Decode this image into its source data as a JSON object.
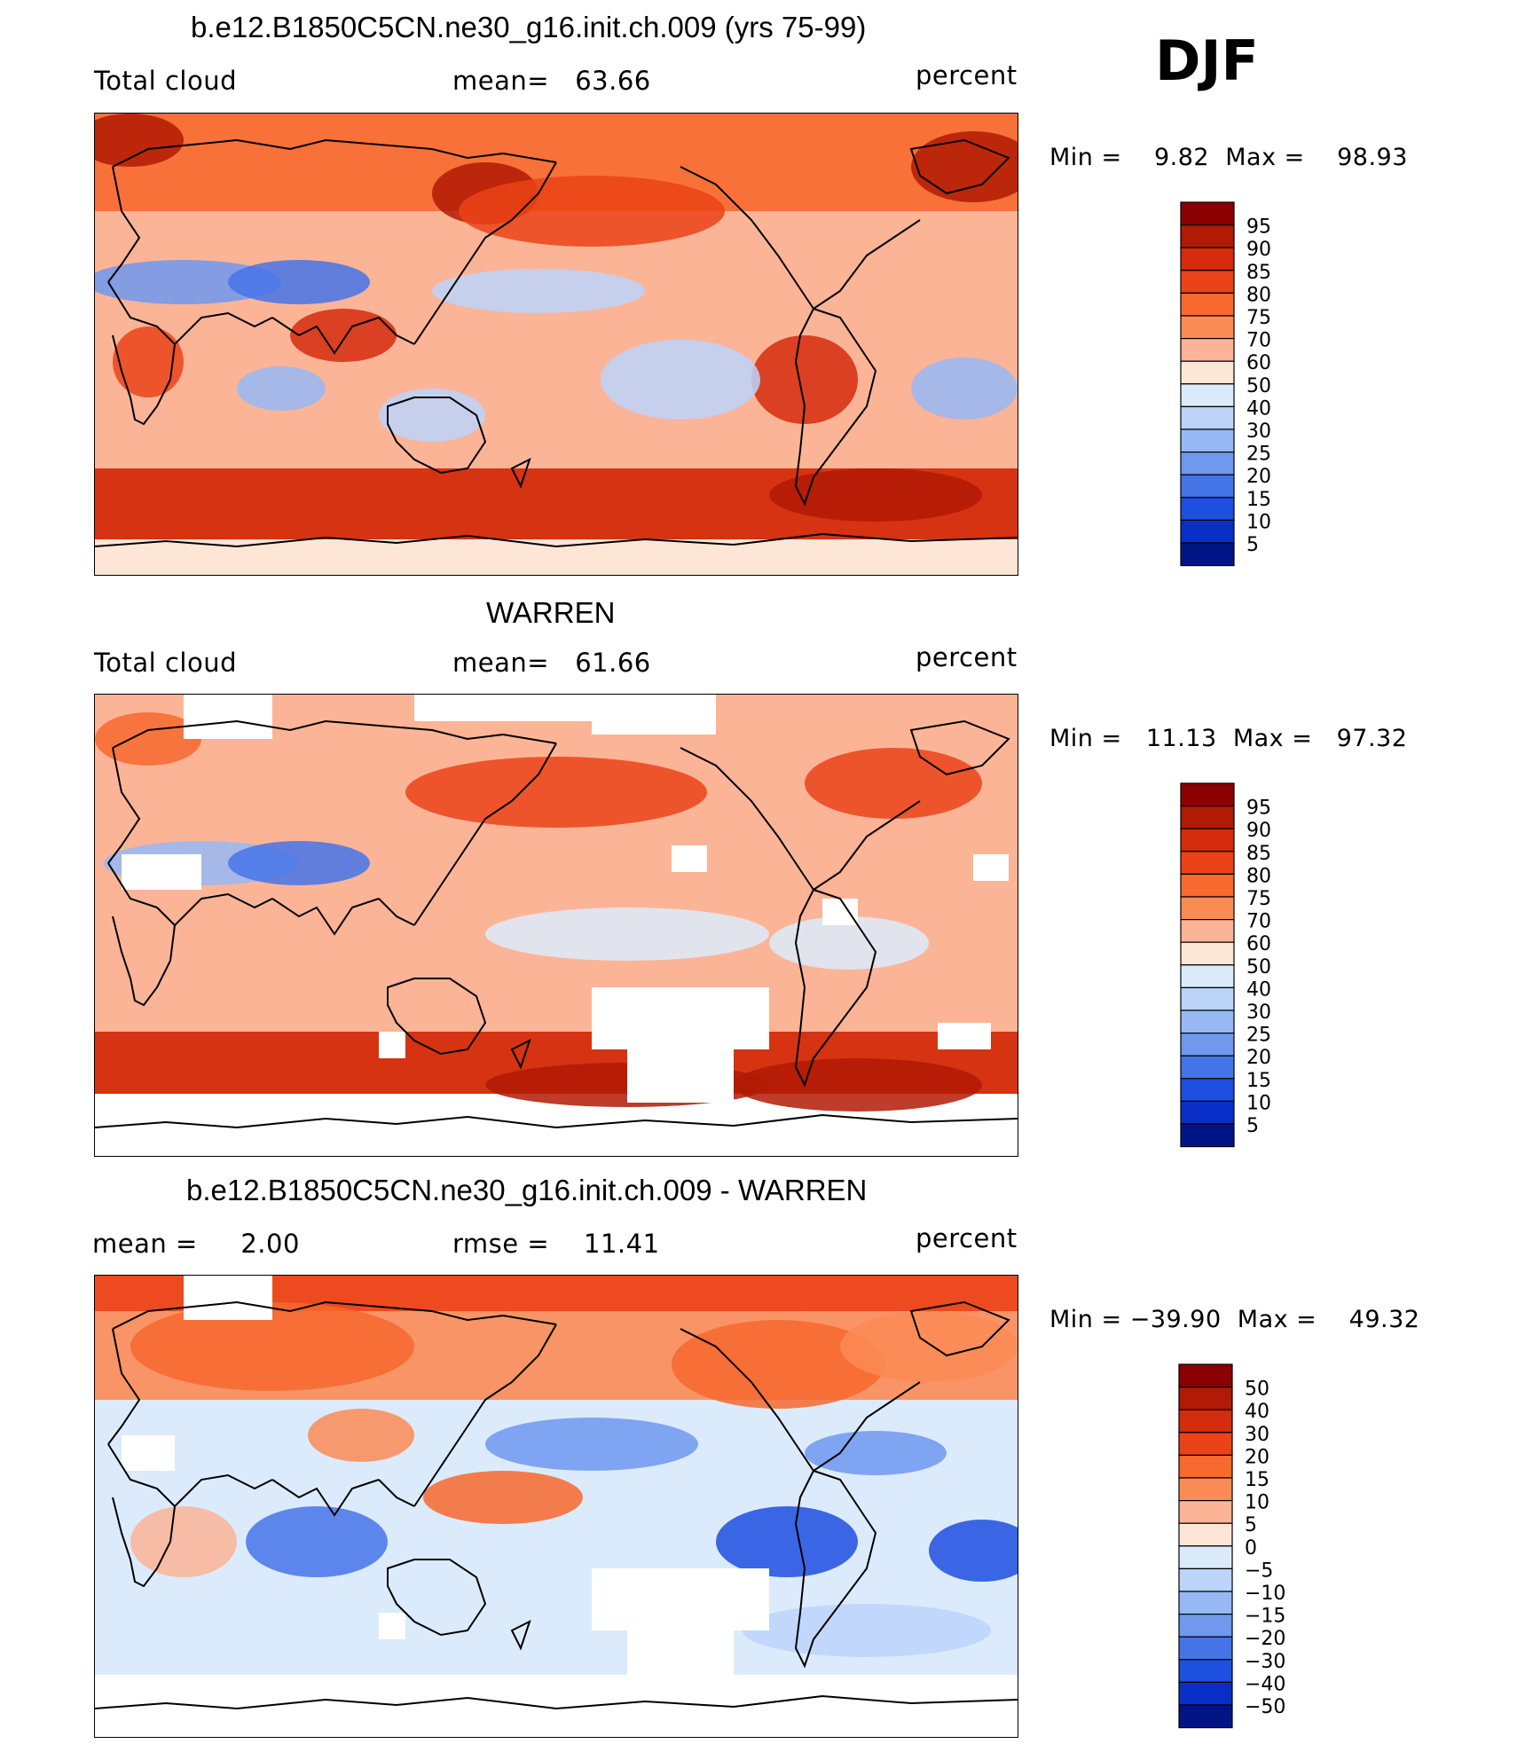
{
  "season": "DJF",
  "panels": [
    {
      "id": "model",
      "title": "b.e12.B1850C5CN.ne30_g16.init.ch.009 (yrs 75-99)",
      "left_label": "Total cloud",
      "center_label": "mean=   63.66",
      "units": "percent",
      "minmax": "Min =    9.82  Max =    98.93"
    },
    {
      "id": "obs",
      "title": "WARREN",
      "left_label": "Total cloud",
      "center_label": "mean=   61.66",
      "units": "percent",
      "minmax": "Min =   11.13  Max =   97.32"
    },
    {
      "id": "diff",
      "title": "b.e12.B1850C5CN.ne30_g16.init.ch.009 - WARREN",
      "left_label": "mean =     2.00",
      "center_label": "rmse =    11.41",
      "units": "percent",
      "minmax": "Min = −39.90  Max =    49.32"
    }
  ],
  "chart_data": [
    {
      "type": "heatmap",
      "title": "b.e12.B1850C5CN.ne30_g16.init.ch.009 (yrs 75-99)",
      "variable": "Total cloud",
      "units": "percent",
      "mean": 63.66,
      "min": 9.82,
      "max": 98.93,
      "colorbar_labels": [
        "95",
        "90",
        "85",
        "80",
        "75",
        "70",
        "60",
        "50",
        "40",
        "30",
        "25",
        "20",
        "15",
        "10",
        "5"
      ],
      "colorbar_colors": [
        "#8b0000",
        "#b11a05",
        "#d42c0c",
        "#eb4317",
        "#f7692e",
        "#fb8b55",
        "#fcb497",
        "#fde6d6",
        "#dcebfb",
        "#bcd4fa",
        "#96b9f5",
        "#6f98ee",
        "#4574e7",
        "#1d4fe0",
        "#0a2fc8",
        "#001585"
      ]
    },
    {
      "type": "heatmap",
      "title": "WARREN",
      "variable": "Total cloud",
      "units": "percent",
      "mean": 61.66,
      "min": 11.13,
      "max": 97.32,
      "colorbar_labels": [
        "95",
        "90",
        "85",
        "80",
        "75",
        "70",
        "60",
        "50",
        "40",
        "30",
        "25",
        "20",
        "15",
        "10",
        "5"
      ],
      "colorbar_colors": [
        "#8b0000",
        "#b11a05",
        "#d42c0c",
        "#eb4317",
        "#f7692e",
        "#fb8b55",
        "#fcb497",
        "#fde6d6",
        "#dcebfb",
        "#bcd4fa",
        "#96b9f5",
        "#6f98ee",
        "#4574e7",
        "#1d4fe0",
        "#0a2fc8",
        "#001585"
      ]
    },
    {
      "type": "heatmap",
      "title": "b.e12.B1850C5CN.ne30_g16.init.ch.009 - WARREN",
      "variable": "",
      "units": "percent",
      "mean": 2.0,
      "rmse": 11.41,
      "min": -39.9,
      "max": 49.32,
      "colorbar_labels": [
        "50",
        "40",
        "30",
        "20",
        "15",
        "10",
        "5",
        "0",
        "−5",
        "−10",
        "−15",
        "−20",
        "−30",
        "−40",
        "−50"
      ],
      "colorbar_colors": [
        "#8b0000",
        "#b11a05",
        "#d42c0c",
        "#eb4317",
        "#f7692e",
        "#fb8b55",
        "#fcb497",
        "#fde6d6",
        "#dcebfb",
        "#bcd4fa",
        "#96b9f5",
        "#6f98ee",
        "#4574e7",
        "#1d4fe0",
        "#0a2fc8",
        "#001585"
      ]
    }
  ]
}
